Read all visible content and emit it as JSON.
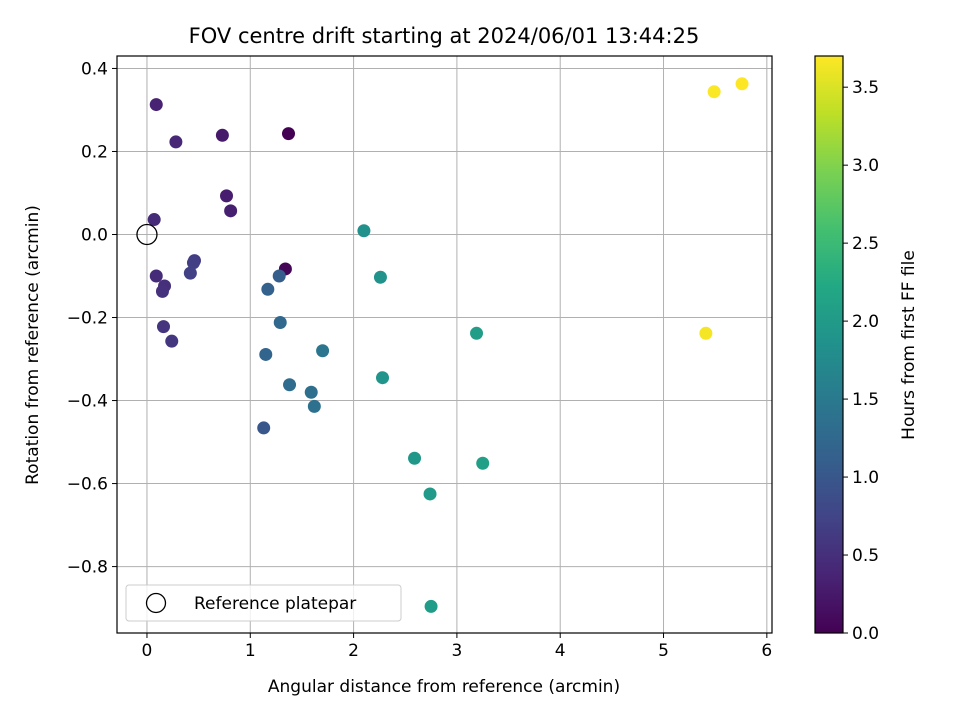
{
  "chart_data": {
    "type": "scatter",
    "title": "FOV centre drift starting at 2024/06/01 13:44:25",
    "xlabel": "Angular distance from reference (arcmin)",
    "ylabel": "Rotation from reference (arcmin)",
    "xlim": [
      -0.29,
      6.05
    ],
    "ylim": [
      -0.96,
      0.43
    ],
    "x_ticks": [
      0,
      1,
      2,
      3,
      4,
      5,
      6
    ],
    "x_tick_labels": [
      "0",
      "1",
      "2",
      "3",
      "4",
      "5",
      "6"
    ],
    "y_ticks": [
      0.4,
      0.2,
      0.0,
      -0.2,
      -0.4,
      -0.6,
      -0.8
    ],
    "y_tick_labels": [
      "0.4",
      "0.2",
      "0.0",
      "−0.2",
      "−0.4",
      "−0.6",
      "−0.8"
    ],
    "grid": true,
    "colormap": "viridis",
    "colorbar": {
      "label": "Hours from first FF file",
      "range": [
        0.0,
        3.7
      ],
      "ticks": [
        0.0,
        0.5,
        1.0,
        1.5,
        2.0,
        2.5,
        3.0,
        3.5
      ],
      "tick_labels": [
        "0.0",
        "0.5",
        "1.0",
        "1.5",
        "2.0",
        "2.5",
        "3.0",
        "3.5"
      ]
    },
    "reference_point": {
      "x": 0.0,
      "y": 0.0
    },
    "legend": {
      "placement": "lower-left",
      "entries": [
        "Reference platepar"
      ]
    },
    "points": [
      {
        "x": 1.37,
        "y": 0.243,
        "c": 0.0
      },
      {
        "x": 1.34,
        "y": -0.083,
        "c": 0.05
      },
      {
        "x": 0.73,
        "y": 0.239,
        "c": 0.25
      },
      {
        "x": 0.77,
        "y": 0.093,
        "c": 0.3
      },
      {
        "x": 0.81,
        "y": 0.057,
        "c": 0.32
      },
      {
        "x": 0.09,
        "y": 0.313,
        "c": 0.35
      },
      {
        "x": 0.28,
        "y": 0.223,
        "c": 0.4
      },
      {
        "x": 0.07,
        "y": 0.036,
        "c": 0.45
      },
      {
        "x": 0.09,
        "y": -0.1,
        "c": 0.45
      },
      {
        "x": 0.17,
        "y": -0.124,
        "c": 0.5
      },
      {
        "x": 0.15,
        "y": -0.137,
        "c": 0.52
      },
      {
        "x": 0.16,
        "y": -0.222,
        "c": 0.55
      },
      {
        "x": 0.24,
        "y": -0.257,
        "c": 0.58
      },
      {
        "x": 0.46,
        "y": -0.063,
        "c": 0.65
      },
      {
        "x": 0.45,
        "y": -0.068,
        "c": 0.68
      },
      {
        "x": 0.42,
        "y": -0.093,
        "c": 0.7
      },
      {
        "x": 1.13,
        "y": -0.466,
        "c": 1.0
      },
      {
        "x": 1.28,
        "y": -0.1,
        "c": 1.1
      },
      {
        "x": 1.17,
        "y": -0.132,
        "c": 1.15
      },
      {
        "x": 1.15,
        "y": -0.289,
        "c": 1.2
      },
      {
        "x": 1.29,
        "y": -0.212,
        "c": 1.25
      },
      {
        "x": 1.38,
        "y": -0.362,
        "c": 1.3
      },
      {
        "x": 1.59,
        "y": -0.38,
        "c": 1.35
      },
      {
        "x": 1.62,
        "y": -0.414,
        "c": 1.38
      },
      {
        "x": 1.7,
        "y": -0.28,
        "c": 1.45
      },
      {
        "x": 2.1,
        "y": 0.009,
        "c": 1.85
      },
      {
        "x": 2.26,
        "y": -0.103,
        "c": 1.88
      },
      {
        "x": 2.28,
        "y": -0.345,
        "c": 1.9
      },
      {
        "x": 2.59,
        "y": -0.539,
        "c": 1.95
      },
      {
        "x": 2.74,
        "y": -0.625,
        "c": 2.0
      },
      {
        "x": 2.75,
        "y": -0.896,
        "c": 2.02
      },
      {
        "x": 3.19,
        "y": -0.238,
        "c": 2.05
      },
      {
        "x": 3.25,
        "y": -0.551,
        "c": 2.08
      },
      {
        "x": 5.41,
        "y": -0.238,
        "c": 3.65
      },
      {
        "x": 5.49,
        "y": 0.344,
        "c": 3.68
      },
      {
        "x": 5.76,
        "y": 0.363,
        "c": 3.7
      }
    ]
  }
}
